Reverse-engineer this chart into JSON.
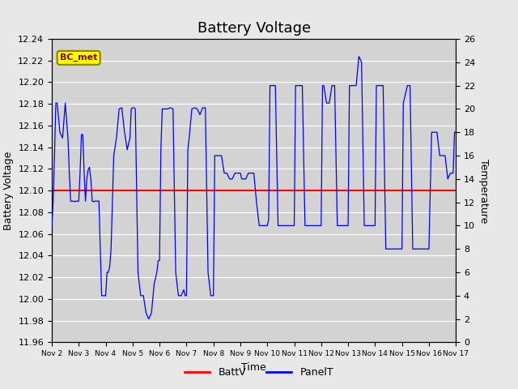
{
  "title": "Battery Voltage",
  "ylabel_left": "Battery Voltage",
  "ylabel_right": "Temperature",
  "xlabel": "Time",
  "ylim_left": [
    11.96,
    12.24
  ],
  "ylim_right": [
    0,
    26
  ],
  "yticks_left": [
    11.96,
    11.98,
    12.0,
    12.02,
    12.04,
    12.06,
    12.08,
    12.1,
    12.12,
    12.14,
    12.16,
    12.18,
    12.2,
    12.22,
    12.24
  ],
  "yticks_right": [
    0,
    2,
    4,
    6,
    8,
    10,
    12,
    14,
    16,
    18,
    20,
    22,
    24,
    26
  ],
  "xtick_labels": [
    "Nov 2",
    "Nov 3",
    "Nov 4",
    "Nov 5",
    "Nov 6",
    "Nov 7",
    "Nov 8",
    "Nov 9",
    "Nov 10",
    "Nov 11",
    "Nov 12",
    "Nov 13",
    "Nov 14",
    "Nov 15",
    "Nov 16",
    "Nov 17"
  ],
  "batt_v": 12.1,
  "batt_color": "#ff0000",
  "panel_color": "#0000ff",
  "background_color": "#e8e8e8",
  "plot_bg_color": "#d3d3d3",
  "legend_batt_label": "BattV",
  "legend_panel_label": "PanelT",
  "annotation_text": "BC_met",
  "annotation_bg": "#ffff00",
  "annotation_border": "#8b8000",
  "title_fontsize": 13,
  "axis_label_fontsize": 9,
  "tick_fontsize": 8,
  "panel_t_x": [
    0.0,
    0.05,
    0.1,
    0.15,
    0.2,
    0.3,
    0.4,
    0.5,
    0.6,
    0.65,
    0.7,
    0.75,
    0.8,
    0.85,
    0.9,
    0.95,
    1.0,
    1.05,
    1.1,
    1.15,
    1.2,
    1.25,
    1.3,
    1.35,
    1.4,
    1.45,
    1.5,
    1.55,
    1.6,
    1.65,
    1.7,
    1.75,
    1.8,
    1.85,
    1.9,
    1.95,
    2.0,
    2.05,
    2.1,
    2.15,
    2.2,
    2.3,
    2.4,
    2.5,
    2.6,
    2.7,
    2.8,
    2.9,
    2.95,
    3.0,
    3.05,
    3.1,
    3.2,
    3.3,
    3.4,
    3.5,
    3.6,
    3.7,
    3.8,
    3.9,
    3.95,
    4.0,
    4.05,
    4.1,
    4.2,
    4.3,
    4.4,
    4.5,
    4.6,
    4.7,
    4.8,
    4.9,
    4.95,
    5.0,
    5.05,
    5.1,
    5.2,
    5.3,
    5.4,
    5.5,
    5.6,
    5.7,
    5.8,
    5.9,
    5.95,
    6.0,
    6.05,
    6.1,
    6.2,
    6.3,
    6.4,
    6.5,
    6.6,
    6.7,
    6.8,
    6.9,
    6.95,
    7.0,
    7.05,
    7.1,
    7.2,
    7.3,
    7.4,
    7.5,
    7.6,
    7.7,
    7.8,
    7.9,
    7.95,
    8.0,
    8.05,
    8.1,
    8.2,
    8.3,
    8.4,
    8.5,
    8.6,
    8.7,
    8.8,
    8.9,
    8.95,
    9.0,
    9.05,
    9.1,
    9.2,
    9.3,
    9.4,
    9.5,
    9.6,
    9.7,
    9.8,
    9.9,
    9.95,
    10.0,
    10.05,
    10.1,
    10.2,
    10.3,
    10.4,
    10.5,
    10.6,
    10.7,
    10.8,
    10.9,
    10.95,
    11.0,
    11.05,
    11.1,
    11.2,
    11.3,
    11.4,
    11.5,
    11.6,
    11.7,
    11.8,
    11.9,
    11.95,
    12.0,
    12.05,
    12.1,
    12.2,
    12.3,
    12.4,
    12.5,
    12.6,
    12.7,
    12.8,
    12.9,
    12.95,
    13.0,
    13.05,
    13.1,
    13.2,
    13.3,
    13.4,
    13.5,
    13.6,
    13.7,
    13.8,
    13.9,
    13.95,
    14.0,
    14.1,
    14.2,
    14.3,
    14.4,
    14.5,
    14.6,
    14.7,
    14.8,
    14.9,
    14.95,
    15.0
  ],
  "panel_t_y": [
    10,
    12,
    16,
    20.5,
    20.5,
    18,
    17.5,
    20.5,
    17.5,
    14.5,
    12.1,
    12.1,
    12.1,
    12.05,
    12.1,
    12.1,
    12.1,
    14.6,
    17.8,
    17.8,
    14.6,
    12.1,
    14.0,
    14.8,
    15.0,
    14.0,
    12.1,
    12.05,
    12.1,
    12.1,
    12.1,
    12.1,
    8.0,
    4.0,
    4.0,
    4.0,
    4.0,
    6.0,
    6.0,
    6.5,
    8.0,
    16.0,
    17.5,
    20.0,
    20.1,
    18.0,
    16.5,
    17.5,
    20.0,
    20.1,
    20.1,
    20.0,
    6.0,
    4.0,
    4.0,
    2.5,
    2.0,
    2.5,
    5.0,
    6.0,
    7.0,
    7.0,
    16.5,
    20.0,
    20.0,
    20.0,
    20.1,
    20.0,
    6.0,
    4.0,
    4.0,
    4.5,
    4.0,
    4.0,
    16.5,
    17.5,
    20.0,
    20.1,
    20.0,
    19.5,
    20.1,
    20.1,
    6.0,
    4.0,
    4.0,
    4.0,
    16.0,
    16.0,
    16.0,
    16.0,
    14.5,
    14.5,
    14.0,
    14.0,
    14.5,
    14.5,
    14.5,
    14.5,
    14.0,
    14.0,
    14.0,
    14.5,
    14.5,
    14.5,
    12.0,
    10.0,
    10.0,
    10.0,
    10.0,
    10.0,
    10.5,
    22.0,
    22.0,
    22.0,
    10.0,
    10.0,
    10.0,
    10.0,
    10.0,
    10.0,
    10.0,
    10.0,
    22.0,
    22.0,
    22.0,
    22.0,
    10.0,
    10.0,
    10.0,
    10.0,
    10.0,
    10.0,
    10.0,
    10.0,
    22.0,
    22.0,
    20.5,
    20.5,
    22.0,
    22.0,
    10.0,
    10.0,
    10.0,
    10.0,
    10.0,
    10.0,
    22.0,
    22.0,
    22.0,
    22.0,
    24.5,
    24.0,
    10.0,
    10.0,
    10.0,
    10.0,
    10.0,
    10.0,
    22.0,
    22.0,
    22.0,
    22.0,
    8.0,
    8.0,
    8.0,
    8.0,
    8.0,
    8.0,
    8.0,
    8.0,
    20.5,
    21.0,
    22.0,
    22.0,
    8.0,
    8.0,
    8.0,
    8.0,
    8.0,
    8.0,
    8.0,
    8.0,
    18.0,
    18.0,
    18.0,
    16.0,
    16.0,
    16.0,
    14.0,
    14.5,
    14.5,
    18.0,
    18.0
  ]
}
